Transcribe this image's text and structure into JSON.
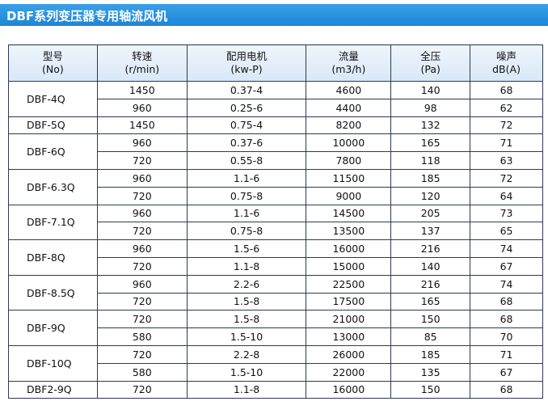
{
  "header": {
    "title": "DBF系列变压器专用轴流风机"
  },
  "table": {
    "columns": [
      [
        "型号",
        "(No)"
      ],
      [
        "转速",
        "(r/min)"
      ],
      [
        "配用电机",
        "(kw-P)"
      ],
      [
        "流量",
        "(m3/h)"
      ],
      [
        "全压",
        "(Pa)"
      ],
      [
        "噪声",
        "dB(A)"
      ]
    ],
    "groups": [
      {
        "model": "DBF-4Q",
        "rows": [
          [
            1450,
            "0.37-4",
            4600,
            140,
            68
          ],
          [
            960,
            "0.25-6",
            4400,
            98,
            62
          ]
        ]
      },
      {
        "model": "DBF-5Q",
        "rows": [
          [
            1450,
            "0.75-4",
            8200,
            132,
            72
          ]
        ]
      },
      {
        "model": "DBF-6Q",
        "rows": [
          [
            960,
            "0.37-6",
            10000,
            165,
            71
          ],
          [
            720,
            "0.55-8",
            7800,
            118,
            63
          ]
        ]
      },
      {
        "model": "DBF-6.3Q",
        "rows": [
          [
            960,
            "1.1-6",
            11500,
            185,
            72
          ],
          [
            720,
            "0.75-8",
            9000,
            120,
            64
          ]
        ]
      },
      {
        "model": "DBF-7.1Q",
        "rows": [
          [
            960,
            "1.1-6",
            14500,
            205,
            73
          ],
          [
            720,
            "0.75-8",
            13500,
            137,
            65
          ]
        ]
      },
      {
        "model": "DBF-8Q",
        "rows": [
          [
            960,
            "1.5-6",
            16000,
            216,
            74
          ],
          [
            720,
            "1.1-8",
            15000,
            140,
            67
          ]
        ]
      },
      {
        "model": "DBF-8.5Q",
        "rows": [
          [
            960,
            "2.2-6",
            22500,
            216,
            74
          ],
          [
            720,
            "1.5-8",
            17500,
            165,
            68
          ]
        ]
      },
      {
        "model": "DBF-9Q",
        "rows": [
          [
            720,
            "1.5-8",
            21000,
            150,
            68
          ],
          [
            580,
            "1.5-10",
            13000,
            85,
            70
          ]
        ]
      },
      {
        "model": "DBF-10Q",
        "rows": [
          [
            720,
            "2.2-8",
            26000,
            185,
            71
          ],
          [
            580,
            "1.5-10",
            22000,
            135,
            67
          ]
        ]
      },
      {
        "model": "DBF2-9Q",
        "rows": [
          [
            720,
            "1.1-8",
            16000,
            150,
            68
          ]
        ]
      }
    ]
  }
}
